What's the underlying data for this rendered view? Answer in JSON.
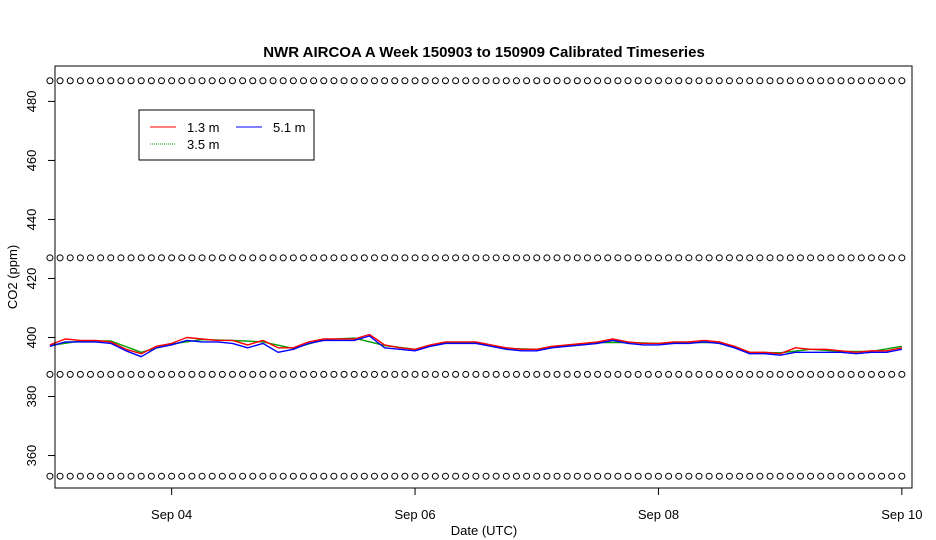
{
  "chart_data": {
    "type": "line",
    "title": "NWR AIRCOA A  Week 150903 to 150909  Calibrated Timeseries",
    "xlabel": "Date (UTC)",
    "ylabel": "CO2 (ppm)",
    "x_ticks": [
      "Sep 04",
      "Sep 06",
      "Sep 08",
      "Sep 10"
    ],
    "y_ticks": [
      "360",
      "380",
      "400",
      "420",
      "440",
      "460",
      "480"
    ],
    "xlim": [
      "2015-09-03T01:00",
      "2015-09-10T02:00"
    ],
    "ylim": [
      349,
      492
    ],
    "legend": {
      "placement": "top-left",
      "entries": [
        {
          "label": "1.3 m",
          "color": "#ff0000"
        },
        {
          "label": "5.1 m",
          "color": "#0000ff"
        },
        {
          "label": "3.5 m",
          "color": "#00a000"
        }
      ]
    },
    "series": [
      {
        "name": "1.3 m",
        "color": "#ff0000",
        "x": [
          "2015-09-03T00:00",
          "2015-09-03T03:00",
          "2015-09-03T06:00",
          "2015-09-03T09:00",
          "2015-09-03T12:00",
          "2015-09-03T15:00",
          "2015-09-03T18:00",
          "2015-09-03T21:00",
          "2015-09-04T00:00",
          "2015-09-04T03:00",
          "2015-09-04T06:00",
          "2015-09-04T09:00",
          "2015-09-04T12:00",
          "2015-09-04T15:00",
          "2015-09-04T18:00",
          "2015-09-04T21:00",
          "2015-09-05T00:00",
          "2015-09-05T03:00",
          "2015-09-05T06:00",
          "2015-09-05T09:00",
          "2015-09-05T12:00",
          "2015-09-05T15:00",
          "2015-09-05T18:00",
          "2015-09-05T21:00",
          "2015-09-06T00:00",
          "2015-09-06T03:00",
          "2015-09-06T06:00",
          "2015-09-06T09:00",
          "2015-09-06T12:00",
          "2015-09-06T15:00",
          "2015-09-06T18:00",
          "2015-09-06T21:00",
          "2015-09-07T00:00",
          "2015-09-07T03:00",
          "2015-09-07T06:00",
          "2015-09-07T09:00",
          "2015-09-07T12:00",
          "2015-09-07T15:00",
          "2015-09-07T18:00",
          "2015-09-07T21:00",
          "2015-09-08T00:00",
          "2015-09-08T03:00",
          "2015-09-08T06:00",
          "2015-09-08T09:00",
          "2015-09-08T12:00",
          "2015-09-08T15:00",
          "2015-09-08T18:00",
          "2015-09-08T21:00",
          "2015-09-09T00:00",
          "2015-09-09T03:00",
          "2015-09-09T06:00",
          "2015-09-09T09:00",
          "2015-09-09T12:00",
          "2015-09-09T15:00",
          "2015-09-09T18:00",
          "2015-09-09T21:00",
          "2015-09-10T00:00"
        ],
        "values": [
          397.5,
          399.5,
          399.0,
          399.0,
          398.5,
          396.0,
          394.5,
          397.0,
          398.0,
          400.0,
          399.5,
          399.0,
          399.0,
          397.5,
          399.0,
          396.5,
          396.5,
          398.5,
          399.5,
          399.5,
          399.5,
          401.0,
          397.5,
          396.5,
          396.0,
          397.5,
          398.5,
          398.5,
          398.5,
          397.5,
          396.5,
          396.0,
          396.0,
          397.0,
          397.5,
          398.0,
          398.5,
          399.5,
          398.5,
          398.0,
          398.0,
          398.5,
          398.5,
          399.0,
          398.5,
          397.0,
          395.0,
          395.0,
          394.5,
          396.5,
          396.0,
          396.0,
          395.5,
          395.0,
          395.5,
          395.5,
          396.5
        ]
      },
      {
        "name": "3.5 m",
        "color": "#00a000",
        "x": [
          "2015-09-03T00:00",
          "2015-09-03T06:00",
          "2015-09-03T12:00",
          "2015-09-03T18:00",
          "2015-09-04T00:00",
          "2015-09-04T06:00",
          "2015-09-04T12:00",
          "2015-09-04T18:00",
          "2015-09-05T00:00",
          "2015-09-05T06:00",
          "2015-09-05T12:00",
          "2015-09-05T18:00",
          "2015-09-06T00:00",
          "2015-09-06T06:00",
          "2015-09-06T12:00",
          "2015-09-06T18:00",
          "2015-09-07T00:00",
          "2015-09-07T06:00",
          "2015-09-07T12:00",
          "2015-09-07T18:00",
          "2015-09-08T00:00",
          "2015-09-08T06:00",
          "2015-09-08T12:00",
          "2015-09-08T18:00",
          "2015-09-09T00:00",
          "2015-09-09T06:00",
          "2015-09-09T12:00",
          "2015-09-09T18:00",
          "2015-09-10T00:00"
        ],
        "values": [
          397.3,
          398.8,
          398.8,
          395.0,
          397.8,
          399.3,
          399.0,
          398.5,
          396.3,
          399.3,
          399.8,
          397.3,
          396.0,
          398.3,
          398.3,
          396.3,
          396.0,
          397.3,
          398.3,
          398.3,
          398.0,
          398.3,
          398.3,
          395.0,
          394.8,
          396.0,
          395.3,
          395.3,
          397.0
        ]
      },
      {
        "name": "5.1 m",
        "color": "#0000ff",
        "x": [
          "2015-09-03T00:00",
          "2015-09-03T03:00",
          "2015-09-03T06:00",
          "2015-09-03T09:00",
          "2015-09-03T12:00",
          "2015-09-03T15:00",
          "2015-09-03T18:00",
          "2015-09-03T21:00",
          "2015-09-04T00:00",
          "2015-09-04T03:00",
          "2015-09-04T06:00",
          "2015-09-04T09:00",
          "2015-09-04T12:00",
          "2015-09-04T15:00",
          "2015-09-04T18:00",
          "2015-09-04T21:00",
          "2015-09-05T00:00",
          "2015-09-05T03:00",
          "2015-09-05T06:00",
          "2015-09-05T09:00",
          "2015-09-05T12:00",
          "2015-09-05T15:00",
          "2015-09-05T18:00",
          "2015-09-05T21:00",
          "2015-09-06T00:00",
          "2015-09-06T03:00",
          "2015-09-06T06:00",
          "2015-09-06T09:00",
          "2015-09-06T12:00",
          "2015-09-06T15:00",
          "2015-09-06T18:00",
          "2015-09-06T21:00",
          "2015-09-07T00:00",
          "2015-09-07T03:00",
          "2015-09-07T06:00",
          "2015-09-07T09:00",
          "2015-09-07T12:00",
          "2015-09-07T15:00",
          "2015-09-07T18:00",
          "2015-09-07T21:00",
          "2015-09-08T00:00",
          "2015-09-08T03:00",
          "2015-09-08T06:00",
          "2015-09-08T09:00",
          "2015-09-08T12:00",
          "2015-09-08T15:00",
          "2015-09-08T18:00",
          "2015-09-08T21:00",
          "2015-09-09T00:00",
          "2015-09-09T03:00",
          "2015-09-09T06:00",
          "2015-09-09T09:00",
          "2015-09-09T12:00",
          "2015-09-09T15:00",
          "2015-09-09T18:00",
          "2015-09-09T21:00",
          "2015-09-10T00:00"
        ],
        "values": [
          397.0,
          398.5,
          398.5,
          398.5,
          398.0,
          395.5,
          393.5,
          396.5,
          397.5,
          399.0,
          398.5,
          398.5,
          398.0,
          396.5,
          398.0,
          395.0,
          396.0,
          398.0,
          399.0,
          399.0,
          399.0,
          400.5,
          396.5,
          396.0,
          395.5,
          397.0,
          398.0,
          398.0,
          398.0,
          397.0,
          396.0,
          395.5,
          395.5,
          396.5,
          397.0,
          397.5,
          398.0,
          399.0,
          398.0,
          397.5,
          397.5,
          398.0,
          398.0,
          398.5,
          398.0,
          396.5,
          394.5,
          394.5,
          394.0,
          395.0,
          395.0,
          395.0,
          395.0,
          394.5,
          395.0,
          395.0,
          396.0
        ]
      },
      {
        "name": "",
        "color": "#000000",
        "marker": "circle",
        "level_values": [
          353,
          387.5,
          427,
          487
        ],
        "x_start": "2015-09-03T00:00",
        "x_end": "2015-09-10T00:00",
        "x_step_hours": 2
      }
    ]
  }
}
